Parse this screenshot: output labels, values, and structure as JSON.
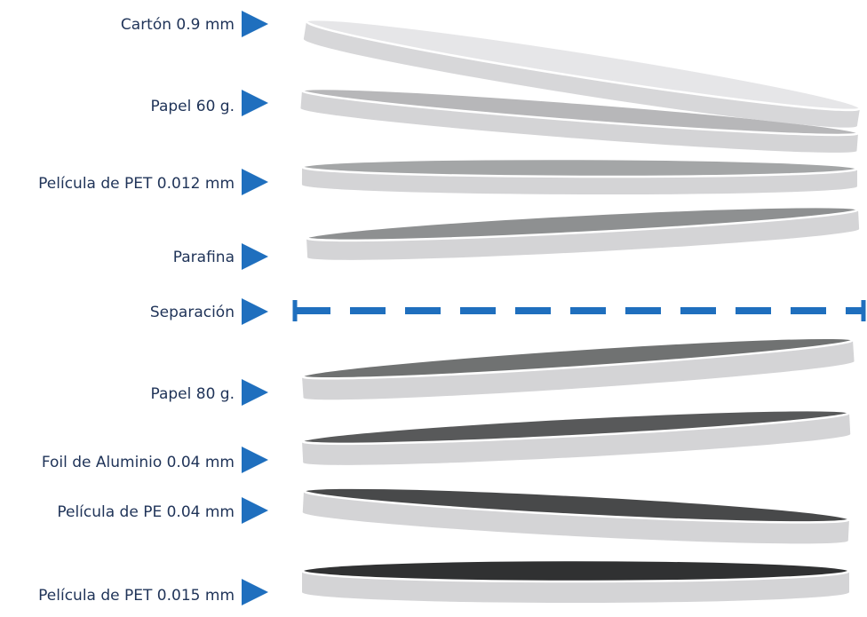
{
  "layers": [
    {
      "label": "Cartón 0.9 mm",
      "kind": "disc",
      "top_color": "#e6e6e8",
      "edge_color": "#d7d7d9"
    },
    {
      "label": "Papel 60 g.",
      "kind": "disc",
      "top_color": "#b7b7b9",
      "edge_color": "#d4d4d6"
    },
    {
      "label": "Película de PET 0.012 mm",
      "kind": "disc",
      "top_color": "#a4a6a7",
      "edge_color": "#d4d4d6"
    },
    {
      "label": "Parafina",
      "kind": "disc",
      "top_color": "#8e9091",
      "edge_color": "#d4d4d6"
    },
    {
      "label": "Separación",
      "kind": "separator",
      "color": "#1f6fbe"
    },
    {
      "label": "Papel 80 g.",
      "kind": "disc",
      "top_color": "#707272",
      "edge_color": "#d4d4d6"
    },
    {
      "label": "Foil de Aluminio 0.04 mm",
      "kind": "disc",
      "top_color": "#58595a",
      "edge_color": "#d4d4d6"
    },
    {
      "label": "Película de PE 0.04 mm",
      "kind": "disc",
      "top_color": "#48494a",
      "edge_color": "#d4d4d6"
    },
    {
      "label": "Película de PET 0.015 mm",
      "kind": "disc",
      "top_color": "#303132",
      "edge_color": "#d4d4d6"
    }
  ],
  "colors": {
    "label_text": "#1f3358",
    "arrow": "#1f6fbe",
    "disc_rim": "#ffffff"
  }
}
